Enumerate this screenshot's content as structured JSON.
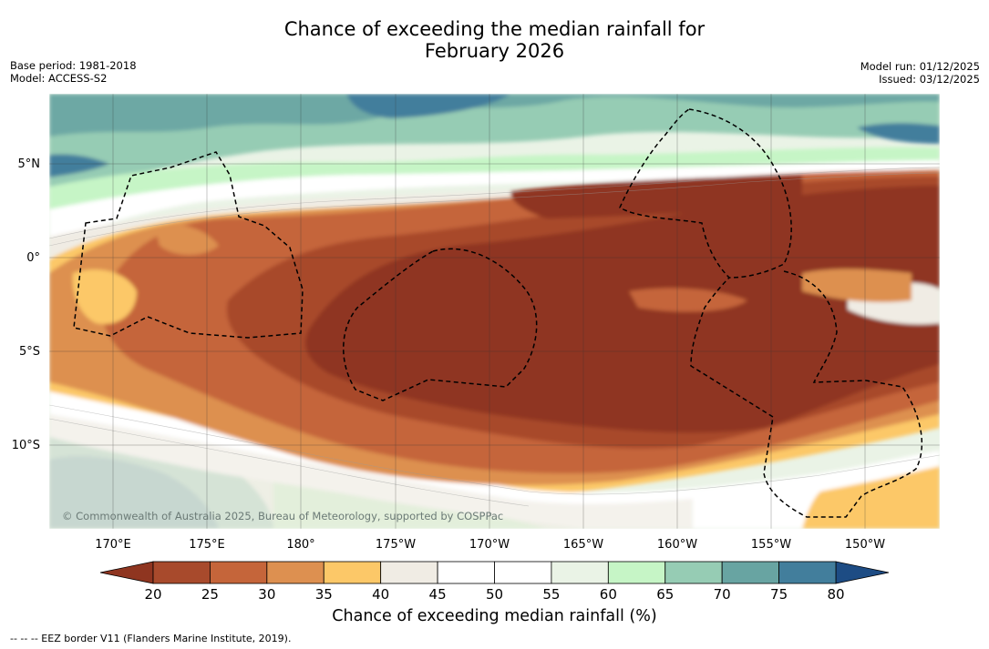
{
  "title": {
    "line1": "Chance of exceeding the median rainfall for",
    "line2": "February 2026"
  },
  "meta_left": {
    "base_period": "Base period: 1981-2018",
    "model": "Model: ACCESS-S2"
  },
  "meta_right": {
    "model_run": "Model run: 01/12/2025",
    "issued": "Issued: 03/12/2025"
  },
  "map": {
    "lon_labels": [
      "170°E",
      "175°E",
      "180°",
      "175°W",
      "170°W",
      "165°W",
      "160°W",
      "155°W",
      "150°W"
    ],
    "lat_labels": [
      "5°N",
      "0°",
      "5°S",
      "10°S"
    ],
    "lon_range_deg_east": [
      166.7,
      213.9
    ],
    "lat_range": [
      -14.4,
      8.7
    ],
    "copyright": "© Commonwealth of Australia 2025, Bureau of Meteorology, supported by COSPPac"
  },
  "colorbar": {
    "ticks": [
      "20",
      "25",
      "30",
      "35",
      "40",
      "45",
      "50",
      "55",
      "60",
      "65",
      "70",
      "75",
      "80"
    ],
    "colors": [
      "#a84a2c",
      "#c5653a",
      "#dd9050",
      "#fcc868",
      "#f0ece4",
      "#ffffff",
      "#ffffff",
      "#eaf3e6",
      "#c6f5c6",
      "#96ccb4",
      "#68a4a2",
      "#427e9c"
    ],
    "under_color": "#8f3520",
    "over_color": "#1d4c84",
    "label": "Chance of exceeding median rainfall (%)"
  },
  "legend_footer": "--  --  -- EEZ border V11 (Flanders Marine Institute, 2019)."
}
